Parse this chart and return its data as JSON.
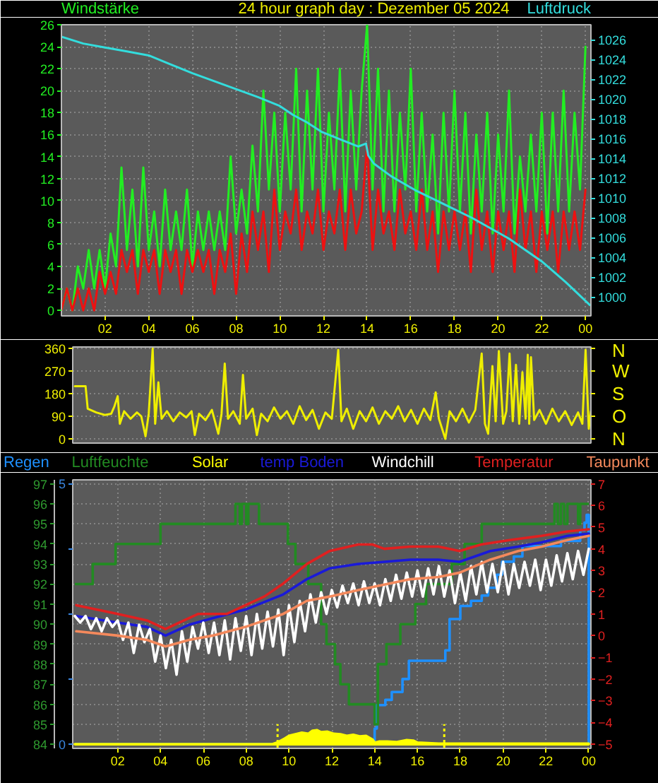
{
  "chart_data": [
    {
      "type": "line",
      "title": "24 hour graph day : Dezember 05 2024",
      "ylabel": "Windstärke",
      "y2label": "Luftdruck",
      "xlim": [
        "2024-12-05T00:00",
        "2024-12-06T00:15"
      ],
      "xticks": [
        {
          "value": "2024-12-05T02:00",
          "label": "02"
        },
        {
          "value": "2024-12-05T04:00",
          "label": "04"
        },
        {
          "value": "2024-12-05T06:00",
          "label": "06"
        },
        {
          "value": "2024-12-05T08:00",
          "label": "08"
        },
        {
          "value": "2024-12-05T10:00",
          "label": "10"
        },
        {
          "value": "2024-12-05T12:00",
          "label": "12"
        },
        {
          "value": "2024-12-05T14:00",
          "label": "14"
        },
        {
          "value": "2024-12-05T16:00",
          "label": "16"
        },
        {
          "value": "2024-12-05T18:00",
          "label": "18"
        },
        {
          "value": "2024-12-05T20:00",
          "label": "20"
        },
        {
          "value": "2024-12-05T22:00",
          "label": "22"
        },
        {
          "value": "2024-12-06T00:00",
          "label": "00"
        }
      ],
      "ylim": [
        -0.5,
        26
      ],
      "yticks": [
        0,
        2,
        4,
        6,
        8,
        10,
        12,
        14,
        16,
        18,
        20,
        22,
        24,
        26
      ],
      "y2lim": [
        998.1,
        1027.5
      ],
      "y2ticks": [
        1000,
        1002,
        1004,
        1006,
        1008,
        1010,
        1012,
        1014,
        1016,
        1018,
        1020,
        1022,
        1024,
        1026
      ],
      "grid": true,
      "series": [
        {
          "color": "#22ee22",
          "x": [
            "2024-12-05T00:00",
            "2024-12-05T00:15",
            "2024-12-05T00:30",
            "2024-12-05T00:45",
            "2024-12-05T01:00",
            "2024-12-05T01:15",
            "2024-12-05T01:30",
            "2024-12-05T01:45",
            "2024-12-05T02:00",
            "2024-12-05T02:15",
            "2024-12-05T02:30",
            "2024-12-05T02:45",
            "2024-12-05T03:00",
            "2024-12-05T03:15",
            "2024-12-05T03:30",
            "2024-12-05T03:45",
            "2024-12-05T04:00",
            "2024-12-05T04:15",
            "2024-12-05T04:30",
            "2024-12-05T04:45",
            "2024-12-05T05:00",
            "2024-12-05T05:15",
            "2024-12-05T05:30",
            "2024-12-05T05:45",
            "2024-12-05T06:00",
            "2024-12-05T06:15",
            "2024-12-05T06:30",
            "2024-12-05T06:45",
            "2024-12-05T07:00",
            "2024-12-05T07:15",
            "2024-12-05T07:30",
            "2024-12-05T07:45",
            "2024-12-05T08:00",
            "2024-12-05T08:15",
            "2024-12-05T08:30",
            "2024-12-05T08:45",
            "2024-12-05T09:00",
            "2024-12-05T09:15",
            "2024-12-05T09:30",
            "2024-12-05T09:45",
            "2024-12-05T10:00",
            "2024-12-05T10:15",
            "2024-12-05T10:30",
            "2024-12-05T10:45",
            "2024-12-05T11:00",
            "2024-12-05T11:15",
            "2024-12-05T11:30",
            "2024-12-05T11:45",
            "2024-12-05T12:00",
            "2024-12-05T12:15",
            "2024-12-05T12:30",
            "2024-12-05T12:45",
            "2024-12-05T13:00",
            "2024-12-05T13:15",
            "2024-12-05T13:30",
            "2024-12-05T13:45",
            "2024-12-05T14:00",
            "2024-12-05T14:15",
            "2024-12-05T14:30",
            "2024-12-05T14:45",
            "2024-12-05T15:00",
            "2024-12-05T15:15",
            "2024-12-05T15:30",
            "2024-12-05T15:45",
            "2024-12-05T16:00",
            "2024-12-05T16:15",
            "2024-12-05T16:30",
            "2024-12-05T16:45",
            "2024-12-05T17:00",
            "2024-12-05T17:15",
            "2024-12-05T17:30",
            "2024-12-05T17:45",
            "2024-12-05T18:00",
            "2024-12-05T18:15",
            "2024-12-05T18:30",
            "2024-12-05T18:45",
            "2024-12-05T19:00",
            "2024-12-05T19:15",
            "2024-12-05T19:30",
            "2024-12-05T19:45",
            "2024-12-05T20:00",
            "2024-12-05T20:15",
            "2024-12-05T20:30",
            "2024-12-05T20:45",
            "2024-12-05T21:00",
            "2024-12-05T21:15",
            "2024-12-05T21:30",
            "2024-12-05T21:45",
            "2024-12-05T22:00",
            "2024-12-05T22:15",
            "2024-12-05T22:30",
            "2024-12-05T22:45",
            "2024-12-05T23:00",
            "2024-12-05T23:15",
            "2024-12-05T23:30",
            "2024-12-05T23:45",
            "2024-12-06T00:00"
          ],
          "values": [
            0,
            2,
            0,
            4,
            2,
            5.5,
            2,
            5.5,
            2,
            7,
            4,
            13,
            5.5,
            11,
            4,
            13,
            5.5,
            9,
            4,
            11,
            5.5,
            9,
            5.5,
            11,
            4,
            9,
            5.5,
            9,
            5.5,
            9,
            5.5,
            14,
            7,
            11,
            7,
            15,
            9,
            20,
            11,
            18,
            9,
            18,
            11,
            22,
            9,
            20,
            11,
            22,
            9,
            18,
            11,
            22,
            9,
            20,
            11,
            20,
            26,
            11,
            22,
            9,
            20,
            9,
            18,
            11,
            22,
            9,
            18,
            9,
            16,
            7,
            18,
            9,
            20,
            9,
            18,
            7,
            16,
            9,
            18,
            7,
            16,
            9,
            20,
            7,
            14,
            9,
            16,
            9,
            18,
            7,
            18,
            9,
            20,
            9,
            18,
            11,
            24
          ]
        },
        {
          "color": "#ee1111",
          "x": [
            "2024-12-05T00:00",
            "2024-12-05T00:15",
            "2024-12-05T00:30",
            "2024-12-05T00:45",
            "2024-12-05T01:00",
            "2024-12-05T01:15",
            "2024-12-05T01:30",
            "2024-12-05T01:45",
            "2024-12-05T02:00",
            "2024-12-05T02:15",
            "2024-12-05T02:30",
            "2024-12-05T02:45",
            "2024-12-05T03:00",
            "2024-12-05T03:15",
            "2024-12-05T03:30",
            "2024-12-05T03:45",
            "2024-12-05T04:00",
            "2024-12-05T04:15",
            "2024-12-05T04:30",
            "2024-12-05T04:45",
            "2024-12-05T05:00",
            "2024-12-05T05:15",
            "2024-12-05T05:30",
            "2024-12-05T05:45",
            "2024-12-05T06:00",
            "2024-12-05T06:15",
            "2024-12-05T06:30",
            "2024-12-05T06:45",
            "2024-12-05T07:00",
            "2024-12-05T07:15",
            "2024-12-05T07:30",
            "2024-12-05T07:45",
            "2024-12-05T08:00",
            "2024-12-05T08:15",
            "2024-12-05T08:30",
            "2024-12-05T08:45",
            "2024-12-05T09:00",
            "2024-12-05T09:15",
            "2024-12-05T09:30",
            "2024-12-05T09:45",
            "2024-12-05T10:00",
            "2024-12-05T10:15",
            "2024-12-05T10:30",
            "2024-12-05T10:45",
            "2024-12-05T11:00",
            "2024-12-05T11:15",
            "2024-12-05T11:30",
            "2024-12-05T11:45",
            "2024-12-05T12:00",
            "2024-12-05T12:15",
            "2024-12-05T12:30",
            "2024-12-05T12:45",
            "2024-12-05T13:00",
            "2024-12-05T13:15",
            "2024-12-05T13:30",
            "2024-12-05T13:45",
            "2024-12-05T14:00",
            "2024-12-05T14:15",
            "2024-12-05T14:30",
            "2024-12-05T14:45",
            "2024-12-05T15:00",
            "2024-12-05T15:15",
            "2024-12-05T15:30",
            "2024-12-05T15:45",
            "2024-12-05T16:00",
            "2024-12-05T16:15",
            "2024-12-05T16:30",
            "2024-12-05T16:45",
            "2024-12-05T17:00",
            "2024-12-05T17:15",
            "2024-12-05T17:30",
            "2024-12-05T17:45",
            "2024-12-05T18:00",
            "2024-12-05T18:15",
            "2024-12-05T18:30",
            "2024-12-05T18:45",
            "2024-12-05T19:00",
            "2024-12-05T19:15",
            "2024-12-05T19:30",
            "2024-12-05T19:45",
            "2024-12-05T20:00",
            "2024-12-05T20:15",
            "2024-12-05T20:30",
            "2024-12-05T20:45",
            "2024-12-05T21:00",
            "2024-12-05T21:15",
            "2024-12-05T21:30",
            "2024-12-05T21:45",
            "2024-12-05T22:00",
            "2024-12-05T22:15",
            "2024-12-05T22:30",
            "2024-12-05T22:45",
            "2024-12-05T23:00",
            "2024-12-05T23:15",
            "2024-12-05T23:30",
            "2024-12-05T23:45",
            "2024-12-06T00:00"
          ],
          "values": [
            0,
            2,
            0,
            2,
            0,
            2,
            0,
            3.5,
            1.5,
            3.5,
            1.5,
            5.5,
            3.5,
            5.5,
            1.5,
            5.5,
            3.5,
            5.5,
            1.5,
            5.5,
            3.5,
            5.5,
            1.5,
            5.5,
            3.5,
            5.5,
            3.5,
            5.5,
            1.5,
            5.5,
            3.5,
            7,
            1.5,
            7,
            3.5,
            9,
            5.5,
            9,
            3.5,
            11,
            5.5,
            9,
            7,
            11,
            5.5,
            9,
            7,
            11,
            5.5,
            9,
            7,
            11,
            5.5,
            11,
            7,
            9,
            15,
            5.5,
            11,
            7,
            9,
            5.5,
            11,
            7,
            9,
            5.5,
            11,
            5.5,
            9,
            3.5,
            9,
            5.5,
            9,
            5.5,
            9,
            3.5,
            11,
            5.5,
            9,
            3.5,
            9,
            5.5,
            9,
            3.5,
            11,
            5.5,
            9,
            3.5,
            9,
            5.5,
            9,
            3.5,
            9,
            5.5,
            9,
            5.5,
            11
          ]
        },
        {
          "color": "#33dddd",
          "axis": "y2",
          "x": [
            "2024-12-05T00:00",
            "2024-12-05T01:00",
            "2024-12-05T02:00",
            "2024-12-05T03:00",
            "2024-12-05T04:00",
            "2024-12-05T05:00",
            "2024-12-05T06:00",
            "2024-12-05T07:00",
            "2024-12-05T08:00",
            "2024-12-05T09:00",
            "2024-12-05T10:00",
            "2024-12-05T10:36",
            "2024-12-05T11:12",
            "2024-12-05T11:54",
            "2024-12-05T12:48",
            "2024-12-05T13:36",
            "2024-12-05T13:57",
            "2024-12-05T14:03",
            "2024-12-05T14:18",
            "2024-12-05T15:06",
            "2024-12-05T16:12",
            "2024-12-05T17:30",
            "2024-12-05T18:48",
            "2024-12-05T20:30",
            "2024-12-05T22:00",
            "2024-12-05T23:06",
            "2024-12-06T00:12"
          ],
          "values": [
            1026.3,
            1025.6,
            1025.2,
            1024.8,
            1024.4,
            1023.5,
            1022.6,
            1021.8,
            1021.0,
            1020.2,
            1019.3,
            1018.4,
            1017.7,
            1016.7,
            1015.9,
            1015.2,
            1015.5,
            1014.3,
            1013.5,
            1012.2,
            1010.8,
            1009.4,
            1008.0,
            1005.9,
            1003.6,
            1001.5,
            999.2
          ]
        }
      ]
    },
    {
      "type": "line",
      "xlim": [
        "2024-12-04T23:54",
        "2024-12-06T00:06"
      ],
      "ylim": [
        -17,
        366
      ],
      "yticks": [
        0,
        90,
        180,
        270,
        360
      ],
      "annotations": [
        "N",
        "W",
        "S",
        "O",
        "N"
      ],
      "grid": "y",
      "tick_labels": "y",
      "series": [
        {
          "color": "#eeee00",
          "x": [
            "2024-12-05T00:00",
            "2024-12-05T00:30",
            "2024-12-05T00:36",
            "2024-12-05T01:00",
            "2024-12-05T01:24",
            "2024-12-05T01:42",
            "2024-12-05T01:51",
            "2024-12-05T02:00",
            "2024-12-05T02:06",
            "2024-12-05T02:18",
            "2024-12-05T02:36",
            "2024-12-05T02:54",
            "2024-12-05T03:06",
            "2024-12-05T03:18",
            "2024-12-05T03:27",
            "2024-12-05T03:38",
            "2024-12-05T03:45",
            "2024-12-05T03:54",
            "2024-12-05T04:03",
            "2024-12-05T04:18",
            "2024-12-05T04:36",
            "2024-12-05T04:54",
            "2024-12-05T05:12",
            "2024-12-05T05:27",
            "2024-12-05T05:36",
            "2024-12-05T05:48",
            "2024-12-05T06:06",
            "2024-12-05T06:24",
            "2024-12-05T06:42",
            "2024-12-05T06:51",
            "2024-12-05T07:00",
            "2024-12-05T07:09",
            "2024-12-05T07:24",
            "2024-12-05T07:42",
            "2024-12-05T07:51",
            "2024-12-05T08:00",
            "2024-12-05T08:18",
            "2024-12-05T08:30",
            "2024-12-05T08:42",
            "2024-12-05T09:00",
            "2024-12-05T09:18",
            "2024-12-05T09:36",
            "2024-12-05T09:54",
            "2024-12-05T10:12",
            "2024-12-05T10:30",
            "2024-12-05T10:48",
            "2024-12-05T11:06",
            "2024-12-05T11:24",
            "2024-12-05T11:42",
            "2024-12-05T12:00",
            "2024-12-05T12:18",
            "2024-12-05T12:27",
            "2024-12-05T12:42",
            "2024-12-05T13:00",
            "2024-12-05T13:18",
            "2024-12-05T13:36",
            "2024-12-05T13:54",
            "2024-12-05T14:12",
            "2024-12-05T14:30",
            "2024-12-05T14:48",
            "2024-12-05T15:06",
            "2024-12-05T15:24",
            "2024-12-05T15:42",
            "2024-12-05T16:00",
            "2024-12-05T16:18",
            "2024-12-05T16:36",
            "2024-12-05T16:51",
            "2024-12-05T17:00",
            "2024-12-05T17:18",
            "2024-12-05T17:30",
            "2024-12-05T17:48",
            "2024-12-05T18:06",
            "2024-12-05T18:24",
            "2024-12-05T18:42",
            "2024-12-05T19:00",
            "2024-12-05T19:09",
            "2024-12-05T19:18",
            "2024-12-05T19:30",
            "2024-12-05T19:39",
            "2024-12-05T19:48",
            "2024-12-05T20:00",
            "2024-12-05T20:09",
            "2024-12-05T20:18",
            "2024-12-05T20:27",
            "2024-12-05T20:36",
            "2024-12-05T20:45",
            "2024-12-05T20:54",
            "2024-12-05T21:03",
            "2024-12-05T21:09",
            "2024-12-05T21:13",
            "2024-12-05T21:18",
            "2024-12-05T21:27",
            "2024-12-05T21:42",
            "2024-12-05T22:00",
            "2024-12-05T22:18",
            "2024-12-05T22:36",
            "2024-12-05T22:54",
            "2024-12-05T23:12",
            "2024-12-05T23:30",
            "2024-12-05T23:42",
            "2024-12-05T23:51",
            "2024-12-06T00:00",
            "2024-12-06T00:06"
          ],
          "values": [
            210,
            210,
            120,
            105,
            95,
            100,
            130,
            170,
            60,
            110,
            80,
            105,
            90,
            10,
            100,
            360,
            60,
            225,
            80,
            110,
            70,
            105,
            85,
            110,
            15,
            100,
            75,
            115,
            20,
            100,
            300,
            80,
            110,
            60,
            255,
            80,
            120,
            15,
            100,
            70,
            125,
            80,
            110,
            60,
            130,
            75,
            115,
            40,
            105,
            80,
            355,
            70,
            120,
            40,
            110,
            70,
            125,
            60,
            110,
            80,
            130,
            70,
            115,
            60,
            120,
            75,
            185,
            80,
            0,
            110,
            70,
            120,
            65,
            115,
            340,
            60,
            20,
            290,
            70,
            350,
            60,
            110,
            340,
            70,
            295,
            60,
            265,
            80,
            335,
            60,
            325,
            75,
            115,
            60,
            120,
            70,
            110,
            55,
            105,
            60,
            355,
            40,
            110
          ]
        }
      ]
    },
    {
      "type": "line",
      "legend": "top",
      "xlim": [
        "2024-12-04T23:54",
        "2024-12-06T00:06"
      ],
      "xticks": [
        {
          "value": "2024-12-05T02:00",
          "label": "02"
        },
        {
          "value": "2024-12-05T04:00",
          "label": "04"
        },
        {
          "value": "2024-12-05T06:00",
          "label": "06"
        },
        {
          "value": "2024-12-05T08:00",
          "label": "08"
        },
        {
          "value": "2024-12-05T10:00",
          "label": "10"
        },
        {
          "value": "2024-12-05T12:00",
          "label": "12"
        },
        {
          "value": "2024-12-05T14:00",
          "label": "14"
        },
        {
          "value": "2024-12-05T16:00",
          "label": "16"
        },
        {
          "value": "2024-12-05T18:00",
          "label": "18"
        },
        {
          "value": "2024-12-05T20:00",
          "label": "20"
        },
        {
          "value": "2024-12-05T22:00",
          "label": "22"
        },
        {
          "value": "2024-12-06T00:00",
          "label": "00"
        }
      ],
      "ylim": [
        83.8,
        97.2
      ],
      "yticks": [
        84,
        85,
        86,
        87,
        88,
        89,
        90,
        91,
        92,
        93,
        94,
        95,
        96,
        97
      ],
      "y2lim": [
        -0.08,
        5.07
      ],
      "y2ticks": [
        0,
        {
          "value": 1.25,
          "label": null
        },
        {
          "value": 2.5,
          "label": null
        },
        {
          "value": 3.75,
          "label": null
        },
        5
      ],
      "y3lim": [
        -5.2,
        7.18
      ],
      "y3ticks": [
        -5,
        -4,
        -3,
        -2,
        -1,
        0,
        1,
        2,
        3,
        4,
        5,
        6,
        7
      ],
      "grid": true,
      "ref_lines": [
        {
          "axis": "x",
          "value": "2024-12-05T09:28",
          "color": "#ffff00",
          "line_style": "dotted"
        },
        {
          "axis": "x",
          "value": "2024-12-05T17:15",
          "color": "#ffff00",
          "line_style": "dotted"
        }
      ],
      "series": [
        {
          "name": "Regen",
          "type": "step",
          "axis": "y2",
          "color": "#1e90ff",
          "x": [
            "2024-12-05T00:00",
            "2024-12-05T14:00",
            "2024-12-05T14:06",
            "2024-12-05T14:30",
            "2024-12-05T14:48",
            "2024-12-05T15:18",
            "2024-12-05T15:36",
            "2024-12-05T17:18",
            "2024-12-05T17:30",
            "2024-12-05T18:00",
            "2024-12-05T18:30",
            "2024-12-05T19:00",
            "2024-12-05T19:18",
            "2024-12-05T19:42",
            "2024-12-05T19:57",
            "2024-12-05T20:30",
            "2024-12-05T20:54",
            "2024-12-05T22:42",
            "2024-12-05T23:36",
            "2024-12-05T23:48",
            "2024-12-05T23:54",
            "2024-12-06T00:00"
          ],
          "values": [
            0,
            0.3,
            0.75,
            0.85,
            1.0,
            1.25,
            1.6,
            1.8,
            2.4,
            2.65,
            2.75,
            2.85,
            3.0,
            3.25,
            3.5,
            3.6,
            3.8,
            3.9,
            4.1,
            4.25,
            4.4,
            0
          ]
        },
        {
          "name": "Luftfeuchte",
          "type": "step",
          "color": "#228b22",
          "x": [
            "2024-12-05T00:00",
            "2024-12-05T00:50",
            "2024-12-05T01:54",
            "2024-12-05T04:00",
            "2024-12-05T07:30",
            "2024-12-05T07:42",
            "2024-12-05T07:48",
            "2024-12-05T08:00",
            "2024-12-05T08:06",
            "2024-12-05T08:36",
            "2024-12-05T09:57",
            "2024-12-05T10:18",
            "2024-12-05T10:54",
            "2024-12-05T11:30",
            "2024-12-05T11:45",
            "2024-12-05T12:09",
            "2024-12-05T12:24",
            "2024-12-05T12:48",
            "2024-12-05T14:00",
            "2024-12-05T14:09",
            "2024-12-05T14:33",
            "2024-12-05T15:12",
            "2024-12-05T15:54",
            "2024-12-05T16:24",
            "2024-12-05T17:36",
            "2024-12-05T18:12",
            "2024-12-05T19:00",
            "2024-12-05T22:24",
            "2024-12-05T22:33",
            "2024-12-05T22:42",
            "2024-12-05T22:51",
            "2024-12-05T23:00",
            "2024-12-05T23:30",
            "2024-12-05T23:36",
            "2024-12-06T00:00"
          ],
          "values": [
            92,
            93,
            94,
            95,
            96,
            95,
            96,
            95,
            96,
            95,
            94,
            93,
            92,
            90,
            89,
            88,
            87,
            86,
            85,
            88,
            89,
            90,
            91,
            92,
            93,
            94,
            95,
            96,
            95,
            96,
            95,
            96,
            95,
            96,
            96
          ]
        },
        {
          "name": "Solar",
          "type": "area",
          "axis": "y2",
          "color": "#ffff00",
          "x": [
            "2024-12-05T00:00",
            "2024-12-05T09:12",
            "2024-12-05T09:30",
            "2024-12-05T09:48",
            "2024-12-05T10:00",
            "2024-12-05T10:18",
            "2024-12-05T10:36",
            "2024-12-05T10:54",
            "2024-12-05T11:06",
            "2024-12-05T11:18",
            "2024-12-05T11:30",
            "2024-12-05T11:48",
            "2024-12-05T12:06",
            "2024-12-05T12:24",
            "2024-12-05T12:42",
            "2024-12-05T13:00",
            "2024-12-05T13:18",
            "2024-12-05T13:36",
            "2024-12-05T13:54",
            "2024-12-05T14:00",
            "2024-12-05T14:12",
            "2024-12-05T14:36",
            "2024-12-05T15:00",
            "2024-12-05T15:30",
            "2024-12-05T15:48",
            "2024-12-05T16:00",
            "2024-12-05T17:00",
            "2024-12-05T20:00",
            "2024-12-06T00:00"
          ],
          "values": [
            0,
            0,
            0.04,
            0.11,
            0.16,
            0.19,
            0.22,
            0.2,
            0.26,
            0.27,
            0.23,
            0.24,
            0.2,
            0.19,
            0.16,
            0.18,
            0.15,
            0.16,
            0.09,
            0.03,
            0.05,
            0.05,
            0.04,
            0.08,
            0.07,
            0.03,
            0.01,
            0.01,
            0.01
          ]
        },
        {
          "name": "temp Boden",
          "axis": "y3",
          "color": "#1a1ad8",
          "x": [
            "2024-12-05T00:04",
            "2024-12-05T02:00",
            "2024-12-05T03:22",
            "2024-12-05T04:14",
            "2024-12-05T05:20",
            "2024-12-05T06:26",
            "2024-12-05T07:58",
            "2024-12-05T09:44",
            "2024-12-05T10:50",
            "2024-12-05T11:54",
            "2024-12-05T13:14",
            "2024-12-05T15:40",
            "2024-12-05T16:59",
            "2024-12-05T17:58",
            "2024-12-05T19:24",
            "2024-12-05T20:42",
            "2024-12-05T21:48",
            "2024-12-05T23:00",
            "2024-12-06T00:00"
          ],
          "values": [
            0.9,
            0.6,
            0.4,
            0.0,
            0.5,
            0.8,
            1.2,
            1.9,
            2.6,
            3.1,
            3.3,
            3.5,
            3.5,
            3.4,
            3.9,
            4.1,
            4.3,
            4.6,
            4.7
          ]
        },
        {
          "name": "Windchill",
          "axis": "y3",
          "color": "#ffffff",
          "x": [
            "2024-12-05T00:00",
            "2024-12-05T00:15",
            "2024-12-05T00:30",
            "2024-12-05T00:45",
            "2024-12-05T01:00",
            "2024-12-05T01:15",
            "2024-12-05T01:30",
            "2024-12-05T01:45",
            "2024-12-05T02:00",
            "2024-12-05T02:15",
            "2024-12-05T02:30",
            "2024-12-05T02:45",
            "2024-12-05T03:00",
            "2024-12-05T03:15",
            "2024-12-05T03:30",
            "2024-12-05T03:45",
            "2024-12-05T04:00",
            "2024-12-05T04:15",
            "2024-12-05T04:30",
            "2024-12-05T04:45",
            "2024-12-05T05:00",
            "2024-12-05T05:15",
            "2024-12-05T05:30",
            "2024-12-05T05:45",
            "2024-12-05T06:00",
            "2024-12-05T06:15",
            "2024-12-05T06:30",
            "2024-12-05T06:45",
            "2024-12-05T07:00",
            "2024-12-05T07:15",
            "2024-12-05T07:30",
            "2024-12-05T07:45",
            "2024-12-05T08:00",
            "2024-12-05T08:15",
            "2024-12-05T08:30",
            "2024-12-05T08:45",
            "2024-12-05T09:00",
            "2024-12-05T09:15",
            "2024-12-05T09:30",
            "2024-12-05T09:45",
            "2024-12-05T10:00",
            "2024-12-05T10:15",
            "2024-12-05T10:30",
            "2024-12-05T10:45",
            "2024-12-05T11:00",
            "2024-12-05T11:15",
            "2024-12-05T11:30",
            "2024-12-05T11:45",
            "2024-12-05T12:00",
            "2024-12-05T12:15",
            "2024-12-05T12:30",
            "2024-12-05T12:45",
            "2024-12-05T13:00",
            "2024-12-05T13:15",
            "2024-12-05T13:30",
            "2024-12-05T13:45",
            "2024-12-05T14:00",
            "2024-12-05T14:15",
            "2024-12-05T14:30",
            "2024-12-05T14:45",
            "2024-12-05T15:00",
            "2024-12-05T15:15",
            "2024-12-05T15:30",
            "2024-12-05T15:45",
            "2024-12-05T16:00",
            "2024-12-05T16:15",
            "2024-12-05T16:30",
            "2024-12-05T16:45",
            "2024-12-05T17:00",
            "2024-12-05T17:15",
            "2024-12-05T17:30",
            "2024-12-05T17:45",
            "2024-12-05T18:00",
            "2024-12-05T18:15",
            "2024-12-05T18:30",
            "2024-12-05T18:45",
            "2024-12-05T19:00",
            "2024-12-05T19:15",
            "2024-12-05T19:30",
            "2024-12-05T19:45",
            "2024-12-05T20:00",
            "2024-12-05T20:15",
            "2024-12-05T20:30",
            "2024-12-05T20:45",
            "2024-12-05T21:00",
            "2024-12-05T21:15",
            "2024-12-05T21:30",
            "2024-12-05T21:45",
            "2024-12-05T22:00",
            "2024-12-05T22:15",
            "2024-12-05T22:30",
            "2024-12-05T22:45",
            "2024-12-05T23:00",
            "2024-12-05T23:15",
            "2024-12-05T23:30",
            "2024-12-05T23:45",
            "2024-12-06T00:00"
          ],
          "values": [
            0.9,
            0.6,
            0.9,
            0.3,
            0.8,
            0.2,
            0.8,
            0.4,
            0.7,
            -0.2,
            0.6,
            -0.8,
            0.5,
            -0.3,
            0.3,
            -1.2,
            0.0,
            -1.5,
            -0.2,
            -1.8,
            0.2,
            -1.2,
            0.4,
            -0.6,
            0.6,
            -0.8,
            0.6,
            -0.9,
            0.7,
            -1.1,
            0.8,
            -0.7,
            0.9,
            -0.9,
            1.0,
            -0.6,
            1.1,
            -0.5,
            1.2,
            -0.9,
            1.4,
            -0.3,
            1.6,
            0.2,
            1.9,
            0.6,
            2.0,
            1.0,
            2.1,
            1.3,
            2.3,
            1.5,
            2.4,
            1.4,
            2.5,
            1.5,
            2.4,
            1.4,
            2.6,
            1.6,
            2.8,
            1.7,
            2.9,
            1.8,
            3.0,
            1.8,
            3.1,
            1.9,
            3.2,
            1.8,
            3.0,
            1.5,
            2.9,
            1.6,
            3.2,
            1.9,
            3.4,
            2.0,
            3.3,
            2.0,
            3.4,
            1.9,
            3.3,
            2.2,
            3.4,
            2.3,
            3.5,
            2.1,
            3.5,
            2.3,
            3.7,
            2.5,
            3.8,
            2.6,
            3.9,
            2.8,
            4.0
          ]
        },
        {
          "name": "Temperatur",
          "axis": "y3",
          "color": "#e02020",
          "x": [
            "2024-12-05T00:04",
            "2024-12-05T02:00",
            "2024-12-05T03:22",
            "2024-12-05T04:14",
            "2024-12-05T05:06",
            "2024-12-05T05:46",
            "2024-12-05T07:06",
            "2024-12-05T07:58",
            "2024-12-05T08:51",
            "2024-12-05T09:44",
            "2024-12-05T10:50",
            "2024-12-05T11:54",
            "2024-12-05T13:14",
            "2024-12-05T13:54",
            "2024-12-05T14:27",
            "2024-12-05T15:40",
            "2024-12-05T16:59",
            "2024-12-05T17:58",
            "2024-12-05T18:58",
            "2024-12-05T20:18",
            "2024-12-05T21:48",
            "2024-12-05T23:00",
            "2024-12-06T00:00"
          ],
          "values": [
            1.4,
            1.0,
            0.7,
            0.3,
            0.7,
            1.0,
            1.0,
            1.4,
            1.8,
            2.4,
            3.3,
            3.9,
            4.2,
            4.2,
            4.0,
            4.1,
            4.1,
            3.9,
            4.2,
            4.4,
            4.6,
            4.8,
            4.9
          ]
        },
        {
          "name": "Taupunkt",
          "axis": "y3",
          "color": "#f4895c",
          "x": [
            "2024-12-05T00:04",
            "2024-12-05T02:00",
            "2024-12-05T03:22",
            "2024-12-05T04:14",
            "2024-12-05T05:20",
            "2024-12-05T06:26",
            "2024-12-05T07:58",
            "2024-12-05T09:44",
            "2024-12-05T10:50",
            "2024-12-05T11:54",
            "2024-12-05T13:14",
            "2024-12-05T15:40",
            "2024-12-05T16:59",
            "2024-12-05T17:58",
            "2024-12-05T19:24",
            "2024-12-05T20:42",
            "2024-12-05T21:48",
            "2024-12-05T23:00",
            "2024-12-06T00:00"
          ],
          "values": [
            0.2,
            0.0,
            -0.2,
            -0.5,
            -0.2,
            0.0,
            0.4,
            1.0,
            1.6,
            1.8,
            2.1,
            2.6,
            2.7,
            2.9,
            3.5,
            3.9,
            4.1,
            4.4,
            4.6
          ]
        }
      ]
    }
  ]
}
